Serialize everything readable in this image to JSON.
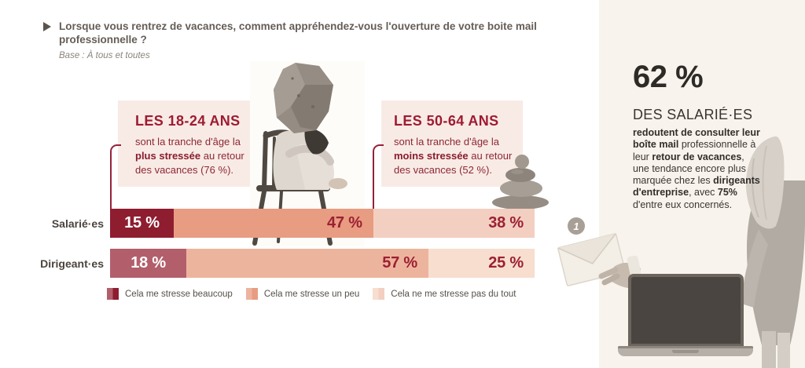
{
  "header": {
    "question": "Lorsque vous rentrez de vacances, comment appréhendez-vous l'ouverture de votre boite mail professionnelle ?",
    "base_note": "Base : À tous et toutes"
  },
  "callouts": [
    {
      "title": "LES 18-24 ANS",
      "text_before": "sont la tranche d'âge la ",
      "text_bold": "plus stressée",
      "text_after": " au retour des vacances (76 %)."
    },
    {
      "title": "LES 50-64 ANS",
      "text_before": "sont la tranche d'âge la ",
      "text_bold": "moins stressée",
      "text_after": " au retour des vacances (52 %)."
    }
  ],
  "chart_data": {
    "type": "bar",
    "orientation": "horizontal",
    "stacked": true,
    "categories": [
      "Salarié·es",
      "Dirigeant·es"
    ],
    "series": [
      {
        "name": "Cela me stresse beaucoup",
        "values": [
          15,
          18
        ],
        "colors": [
          "#8e1d30",
          "#b25f6b"
        ],
        "label_colors": [
          "#ffffff",
          "#ffffff"
        ]
      },
      {
        "name": "Cela me stresse un peu",
        "values": [
          47,
          57
        ],
        "colors": [
          "#e89c82",
          "#edb49d"
        ],
        "label_colors": [
          "#9c2033",
          "#9c2033"
        ]
      },
      {
        "name": "Cela ne me stresse pas du tout",
        "values": [
          38,
          25
        ],
        "colors": [
          "#f3cfc1",
          "#f7decf"
        ],
        "label_colors": [
          "#9c2033",
          "#9c2033"
        ]
      }
    ],
    "value_suffix": " %",
    "xlim": [
      0,
      100
    ],
    "legend_position": "bottom"
  },
  "aside": {
    "stat": "62 %",
    "stat_label": "DES SALARIÉ·ES",
    "paragraph": [
      {
        "text": "redoutent de consulter leur boîte mail",
        "bold": true
      },
      {
        "text": " professionnelle à leur ",
        "bold": false
      },
      {
        "text": "retour de vacances",
        "bold": true
      },
      {
        "text": ", une tendance encore plus marquée chez les ",
        "bold": false
      },
      {
        "text": "dirigeants d'entreprise",
        "bold": true
      },
      {
        "text": ", avec ",
        "bold": false
      },
      {
        "text": "75%",
        "bold": true
      },
      {
        "text": "\nd'entre eux concernés.",
        "bold": false
      }
    ],
    "notification_badge": "1"
  },
  "illustrations": {
    "person_rock": "person-curled-on-chair-with-rock-on-head",
    "zen_stones": "stacked-zen-pebbles",
    "hand_envelope": "hand-holding-envelope-with-notification",
    "woman_laptop": "woman-leaning-over-open-laptop"
  }
}
